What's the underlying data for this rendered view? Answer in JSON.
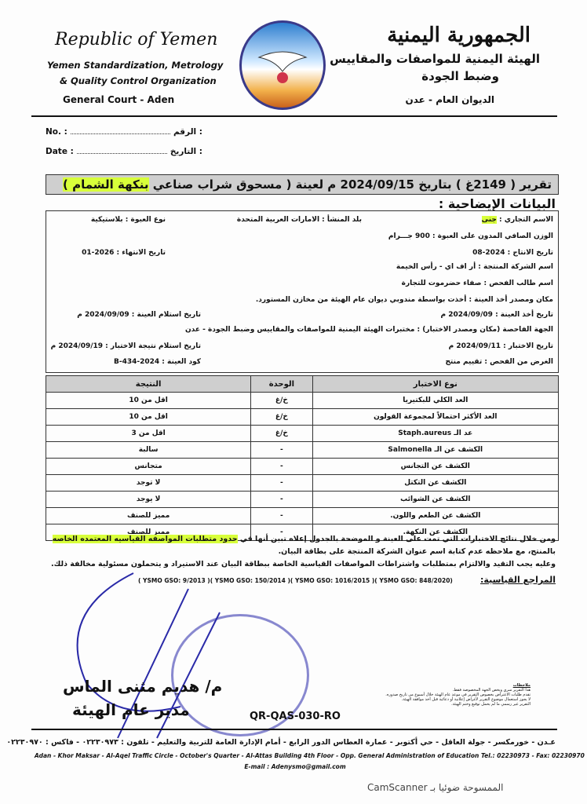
{
  "header": {
    "en_title": "Republic of Yemen",
    "en_org_line1": "Yemen Standardization, Metrology",
    "en_org_line2": "& Quality Control Organization",
    "en_office": "General Court - Aden",
    "ar_title": "الجمهورية اليمنية",
    "ar_org_line1": "الهيئة اليمنية للمواصفات والمقاييس",
    "ar_org_line2": "وضبط الجودة",
    "ar_office": "الديوان العام - عدن"
  },
  "fields": {
    "no_en": "No. :",
    "no_ar": "الرقم :",
    "date_en": "Date :",
    "date_ar": "التاريخ :"
  },
  "report": {
    "title_pre": "تقرير ( 2149غ ) بتاريخ 2024/09/15 م لعينة ( مسحوق شراب صناعي ",
    "title_hl": "بنكهة الشمام )",
    "subtitle": "البيانات الإيضاحية :"
  },
  "info": {
    "trade_name_label": "الاسم التجاري : ",
    "trade_name": "جنى",
    "origin": "بلد المنشأ : الامارات العربية المتحدة",
    "package": "نوع العبوة : بلاستيكية",
    "net_weight": "الوزن الصافي المدون على العبوة : 900 جـــرام",
    "production_date": "تاريخ الانتاج : 2024-08",
    "expiry_date": "تاريخ الانتهاء : 2026-01",
    "manufacturer": "اسم الشركة المنتجة : أر اف اي - رأس الخيمة",
    "requester": "اسم طالب الفحص : صفاء حضرموت للتجارة",
    "sampling_place": "مكان ومصدر أخذ العينة : أخذت بواسطة مندوبي ديوان عام الهيئة من مخازن المستورد.",
    "sampling_date": "تاريخ أخذ العينة : 2024/09/09 م",
    "receipt_date": "تاريخ استلام العينة : 2024/09/09 م",
    "lab": "الجهة الفاحصة (مكان ومصدر الاختبار) : مختبرات الهيئة اليمنية للمواصفات والمقاييس وضبط الجودة - عدن",
    "test_date": "تاريخ الاختبار : 2024/09/11 م",
    "result_receipt_date": "تاريخ استلام نتيجة الاختبار : 2024/09/19 م",
    "purpose": "الغرض من الفحص : تقييم منتج",
    "sample_code": "كود العينة : B-434-2024"
  },
  "table": {
    "headers": {
      "test": "نوع الاختبار",
      "unit": "الوحدة",
      "result": "النتيجة"
    },
    "rows": [
      {
        "test": "العد الكلي للبكتيريا",
        "unit": "خ/غ",
        "result": "اقل من 10"
      },
      {
        "test": "العد الأكثر احتمالاً لمجموعة القولون",
        "unit": "خ/غ",
        "result": "اقل من 10"
      },
      {
        "test": "عد الـ Staph.aureus",
        "unit": "خ/غ",
        "result": "اقل من 3"
      },
      {
        "test": "الكشف عن الـ Salmonella",
        "unit": "-",
        "result": "سالبة"
      },
      {
        "test": "الكشف عن التجانس",
        "unit": "-",
        "result": "متجانس"
      },
      {
        "test": "الكشف عن التكتل",
        "unit": "-",
        "result": "لا توجد"
      },
      {
        "test": "الكشف عن الشوائب",
        "unit": "-",
        "result": "لا يوجد"
      },
      {
        "test": "الكشف عن الطعم واللون.",
        "unit": "-",
        "result": "مميز للصنف"
      },
      {
        "test": "الكشف عن النكهة.",
        "unit": "-",
        "result": "مميز للصنف"
      }
    ]
  },
  "conclusion": {
    "line1_pre": "ومن خلال نتائج الاختبارات التي تمت على العينة و الموضحة بالجدول إعلاه تبين أنها في ",
    "line1_hl": "حدود متطلبات المواصفه القياسيه المعتمده الخاصه",
    "line2": "بالمنتج، مع ملاحظه عدم كتابة اسم عنوان الشركة المنتجة على بطاقة البيان.",
    "line3": "وعليه يجب التقيد والالتزام بمتطلبات واشتراطات المواصفات القياسية الخاصة ببطاقة البيان عند الاستيراد و يتحملون مسئولية مخالفة ذلك.",
    "refs_label": "المراجع القياسية:",
    "refs": "( YSMO GSO: 9/2013 )( YSMO GSO: 150/2014 )( YSMO GSO: 1016/2015 )( YSMO GSO: 848/2020)"
  },
  "notes": {
    "title": "ملاحظات",
    "lines": [
      "هذا التقرير سري ويخص الجهة المخصوصة فقط.",
      "تقدم طلبات الاعتراض بخصوص التقرير في موعد عام الهيئة خلال أسبوع من تاريخ صدوره.",
      "لا يجوز استعمال موضوع التقرير لأغراض إعلانية أو دعائية قبل أخذ موافقة الهيئة.",
      "التقرير غير رسمي ما لم يحمل توقيع وختم الهيئة."
    ]
  },
  "signature": {
    "name": "م/ هديم مثنى الماس",
    "title": "مدير عام الهيئة"
  },
  "form_code": "QR-QAS-030-RO",
  "footer": {
    "ar": "عـدن - خورمكسر - جولة العاقل - حي أكتوبر - عمارة العطاس الدور الرابع - أمام الإدارة العامة للتربية والتعليم - تلفون : ٠٢٢٣٠٩٧٣ - فاكس : ٠٢٢٣٠٩٧٠",
    "en": "Adan - Khor Maksar - Al-Aqel Traffic Circle - October's Quarter - Al-Attas Building 4th Floor - Opp. General Administration of Education   Tel.: 02230973 - Fax: 02230970",
    "email": "E-mail : Adenysmo@gmail.com"
  },
  "watermark": "الممسوحة ضوئيا بـ CamScanner",
  "colors": {
    "highlight": "#d8ff3a",
    "title_bar": "#cfcfcf",
    "signature_ink": "#2a2aa8"
  }
}
